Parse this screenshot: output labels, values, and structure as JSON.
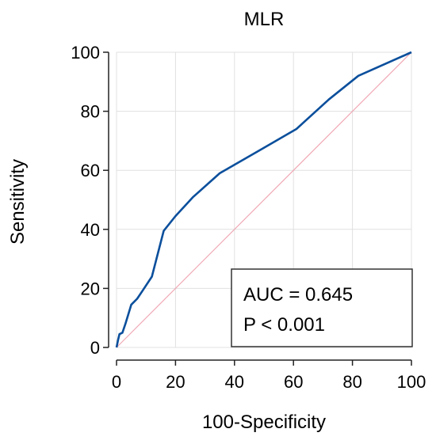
{
  "chart_data": {
    "type": "line",
    "title": "MLR",
    "xlabel": "100-Specificity",
    "ylabel": "Sensitivity",
    "xlim": [
      0,
      100
    ],
    "ylim": [
      0,
      100
    ],
    "xticks": [
      0,
      20,
      40,
      60,
      80,
      100
    ],
    "yticks": [
      0,
      20,
      40,
      60,
      80,
      100
    ],
    "grid": true,
    "series": [
      {
        "color": "#0b4f9c",
        "x": [
          0,
          0.5,
          1,
          2,
          3,
          5,
          7,
          9,
          12,
          16,
          20,
          26,
          35,
          48,
          61,
          72,
          82,
          100
        ],
        "y": [
          0,
          2.5,
          4.5,
          5,
          8,
          14.5,
          16.5,
          19.5,
          24,
          39.5,
          44.5,
          51,
          59,
          66.5,
          74,
          84,
          92,
          100
        ]
      }
    ],
    "reference_line": {
      "x": [
        0,
        100
      ],
      "y": [
        0,
        100
      ],
      "color": "#f0a8b4"
    },
    "annotation": {
      "lines": [
        "AUC = 0.645",
        "P < 0.001"
      ],
      "placement": "bottom-right"
    }
  }
}
